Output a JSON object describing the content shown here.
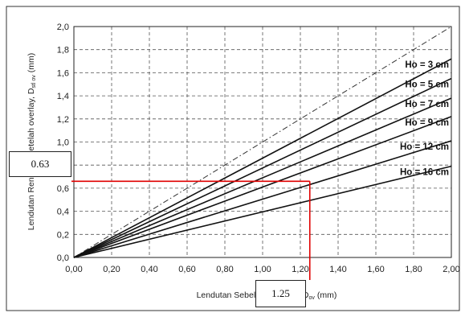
{
  "chart_data": {
    "type": "line",
    "xlabel": "Lendutan Sebelum Overlay, D",
    "xlabel_sub": "ov",
    "xlabel_unit": "(mm)",
    "ylabel": "Lendutan Rencana Setelah overlay, D",
    "ylabel_sub": "stl ov",
    "ylabel_unit": "(mm)",
    "xlim": [
      0,
      2
    ],
    "ylim": [
      0,
      2
    ],
    "grid": true,
    "x_ticks": [
      "0,00",
      "0,20",
      "0,40",
      "0,60",
      "0,80",
      "1,00",
      "1,20",
      "1,40",
      "1,60",
      "1,80",
      "2,00"
    ],
    "y_ticks": [
      "0,0",
      "0,2",
      "0,4",
      "0,6",
      "0,8",
      "1,0",
      "1,2",
      "1,4",
      "1,6",
      "1,8",
      "2,0"
    ],
    "reference_line": {
      "x": [
        0,
        2
      ],
      "y": [
        0,
        2
      ],
      "style": "dash-dot"
    },
    "series": [
      {
        "name": "Ho = 3 cm",
        "x": [
          0,
          2
        ],
        "y": [
          0,
          1.72
        ]
      },
      {
        "name": "Ho = 5 cm",
        "x": [
          0,
          2
        ],
        "y": [
          0,
          1.55
        ]
      },
      {
        "name": "Ho = 7 cm",
        "x": [
          0,
          2
        ],
        "y": [
          0,
          1.38
        ]
      },
      {
        "name": "Ho = 9 cm",
        "x": [
          0,
          2
        ],
        "y": [
          0,
          1.22
        ]
      },
      {
        "name": "Ho = 12 cm",
        "x": [
          0,
          2
        ],
        "y": [
          0,
          1.01
        ]
      },
      {
        "name": "Ho = 16 cm",
        "x": [
          0,
          2
        ],
        "y": [
          0,
          0.79
        ]
      }
    ],
    "annotation": {
      "x": 1.25,
      "y": 0.66,
      "x_label": "1.25",
      "y_label": "0.63",
      "color": "#e00000"
    }
  }
}
